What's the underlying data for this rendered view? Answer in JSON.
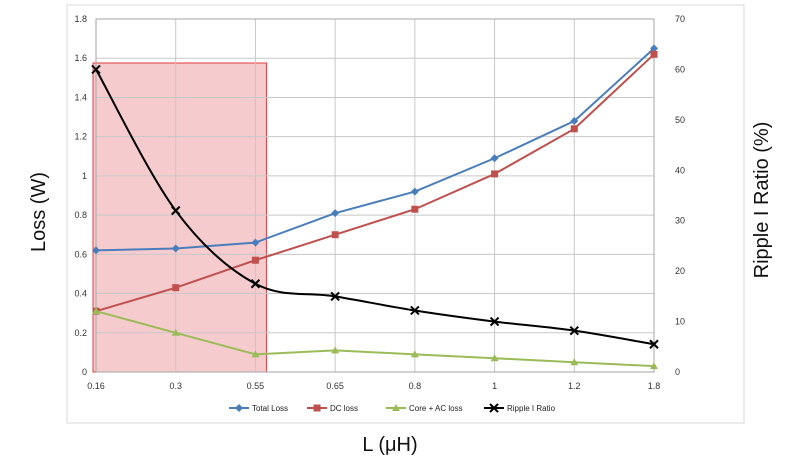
{
  "chart_data": {
    "type": "line",
    "categories": [
      "0.16",
      "0.3",
      "0.55",
      "0.65",
      "0.8",
      "1",
      "1.2",
      "1.8"
    ],
    "xlabel": "L (μH)",
    "ylabel": "Loss (W)",
    "y2label": "Ripple I Ratio (%)",
    "ylim": [
      0,
      1.8
    ],
    "y2lim": [
      0,
      70
    ],
    "yticks": [
      "0",
      "0.2",
      "0.4",
      "0.6",
      "0.8",
      "1",
      "1.2",
      "1.4",
      "1.6",
      "1.8"
    ],
    "y2ticks": [
      "0",
      "10",
      "20",
      "30",
      "40",
      "50",
      "60",
      "70"
    ],
    "grid": true,
    "legend_position": "bottom",
    "highlight_region": {
      "x_from": "0.16",
      "x_to": "0.55",
      "color": "#f4c2c6"
    },
    "series": [
      {
        "name": "Total Loss",
        "axis": "left",
        "color": "#4a7ebb",
        "marker": "diamond",
        "values": [
          0.62,
          0.63,
          0.66,
          0.81,
          0.92,
          1.09,
          1.28,
          1.65
        ]
      },
      {
        "name": "DC loss",
        "axis": "left",
        "color": "#c0504d",
        "marker": "square",
        "values": [
          0.31,
          0.43,
          0.57,
          0.7,
          0.83,
          1.01,
          1.24,
          1.62
        ]
      },
      {
        "name": "Core + AC loss",
        "axis": "left",
        "color": "#9bbb59",
        "marker": "triangle",
        "values": [
          0.31,
          0.2,
          0.09,
          0.11,
          0.09,
          0.07,
          0.05,
          0.03
        ]
      },
      {
        "name": "Ripple I Ratio",
        "axis": "right",
        "color": "#000000",
        "marker": "x",
        "values": [
          60,
          32,
          17.5,
          15,
          12.2,
          10,
          8.2,
          5.5
        ]
      }
    ]
  }
}
